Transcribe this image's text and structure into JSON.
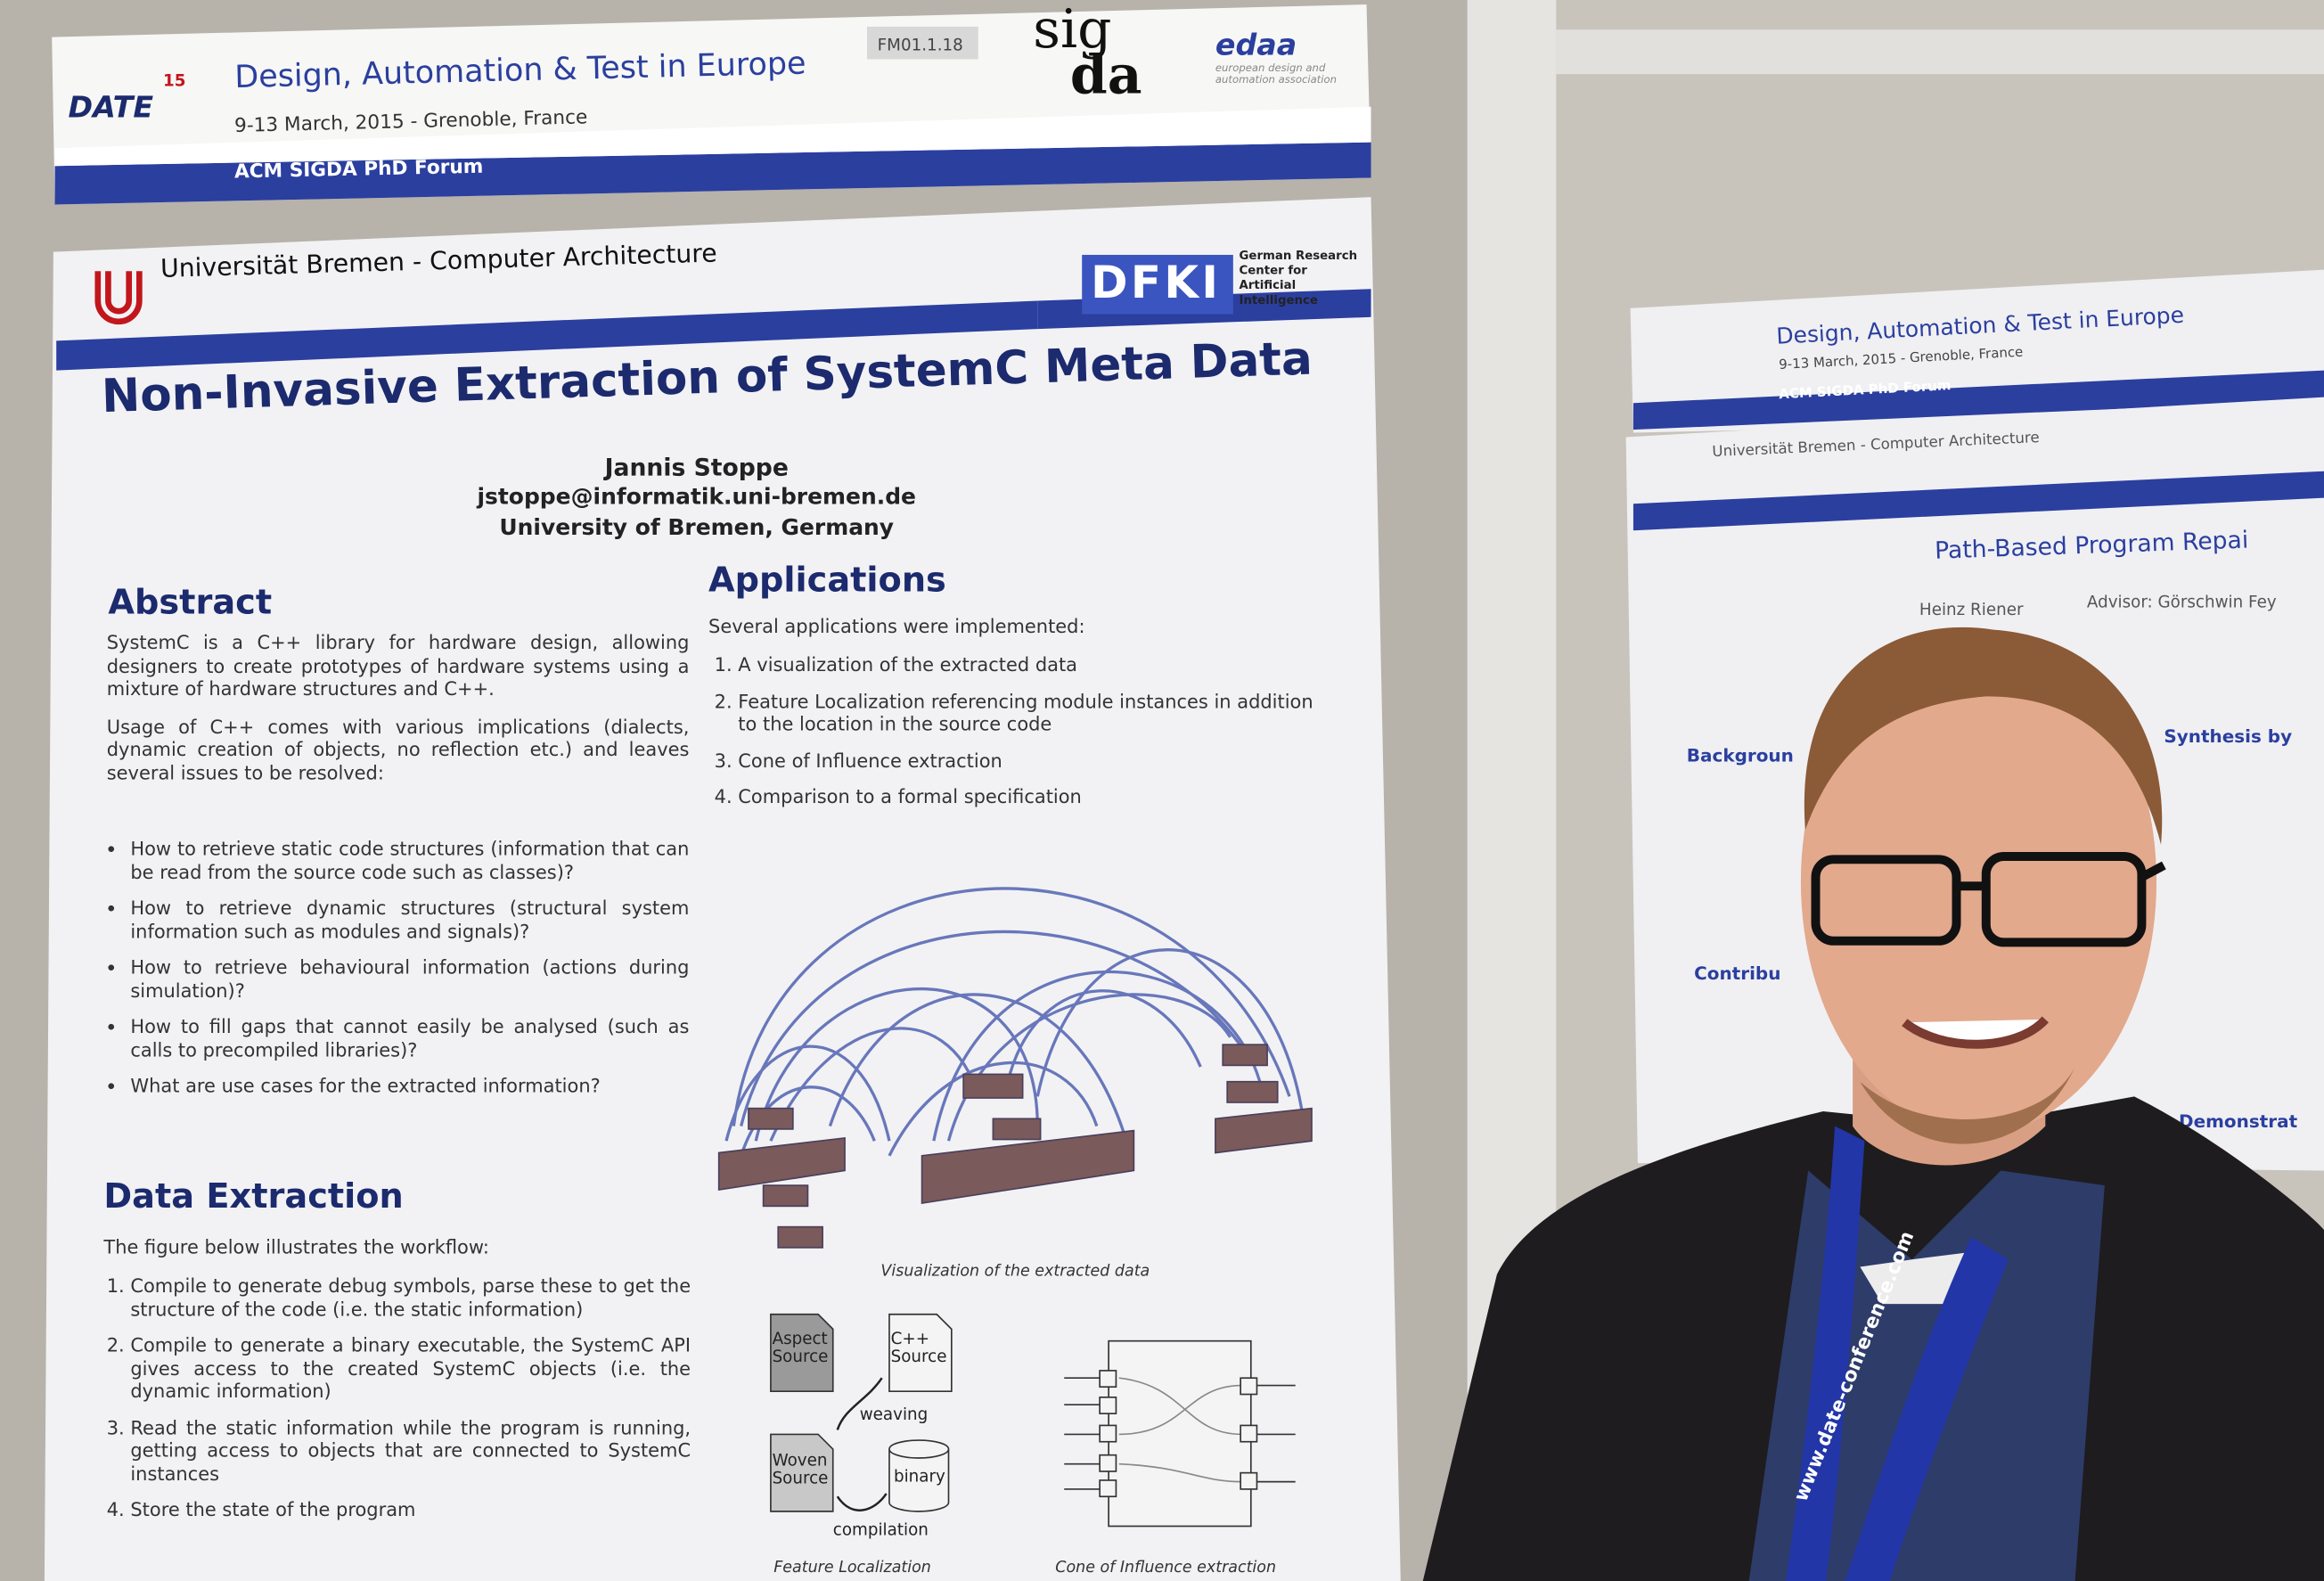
{
  "banner": {
    "badge": "FM01.1.18",
    "logo": "DATE",
    "logo_number": "15",
    "title": "Design, Automation & Test in Europe",
    "subtitle": "9-13 March, 2015 - Grenoble, France",
    "forum": "ACM SIGDA PhD Forum",
    "sigda_top": "sig",
    "sigda_bottom": "da",
    "edaa": "edaa",
    "edaa_sub": "european design and automation association"
  },
  "poster": {
    "affiliation": "Universität Bremen - Computer Architecture",
    "dfki": "DFKI",
    "dfki_text": "German Research Center for Artificial Intelligence",
    "title": "Non-Invasive Extraction of SystemC Meta Data",
    "author": "Jannis Stoppe",
    "email": "jstoppe@informatik.uni-bremen.de",
    "university": "University of Bremen, Germany",
    "abstract": {
      "heading": "Abstract",
      "paragraphs": [
        "SystemC is a C++ library for hardware design, allowing designers to create prototypes of hardware systems using a mixture of hardware structures and C++.",
        "Usage of C++ comes with various implications (dialects, dynamic creation of objects, no reflection etc.) and leaves several issues to be resolved:"
      ],
      "bullets": [
        "How to retrieve static code structures (information that can be read from the source code such as classes)?",
        "How to retrieve dynamic structures (structural system information such as modules and signals)?",
        "How to retrieve behavioural information (actions during simulation)?",
        "How to fill gaps that cannot easily be analysed (such as calls to precompiled libraries)?",
        "What are use cases for the extracted information?"
      ]
    },
    "data_extraction": {
      "heading": "Data Extraction",
      "intro": "The figure below illustrates the workflow:",
      "steps": [
        "Compile to generate debug symbols, parse these to get the structure of the code (i.e. the static information)",
        "Compile to generate a binary executable, the SystemC API gives access to the created SystemC objects (i.e. the dynamic information)",
        "Read the static information while the program is running, getting access to objects that are connected to SystemC instances",
        "Store the state of the program"
      ]
    },
    "applications": {
      "heading": "Applications",
      "intro": "Several applications were implemented:",
      "items": [
        "A visualization of the extracted data",
        "Feature Localization referencing module instances in addition to the location in the source code",
        "Cone of Influence extraction",
        "Comparison to a formal specification"
      ],
      "figure_caption": "Visualization of the extracted data"
    },
    "workflow": {
      "aspect_source": "Aspect Source",
      "cpp_source": "C++ Source",
      "weaving": "weaving",
      "woven_source": "Woven Source",
      "binary": "binary",
      "compilation": "compilation",
      "caption_left": "Feature Localization",
      "caption_right": "Cone of Influence extraction"
    }
  },
  "second_poster": {
    "banner_title": "Design, Automation & Test in Europe",
    "banner_subtitle": "9-13 March, 2015 - Grenoble, France",
    "forum": "ACM SIGDA PhD Forum",
    "affiliation": "Universität Bremen - Computer Architecture",
    "title": "Path-Based Program Repai",
    "author": "Heinz Riener",
    "advisor": "Advisor: Görschwin Fey",
    "headings": [
      "Backgroun",
      "Contribu",
      "Synthesis by",
      "Demonstrat"
    ]
  },
  "lanyard": "www.date-conference.com"
}
